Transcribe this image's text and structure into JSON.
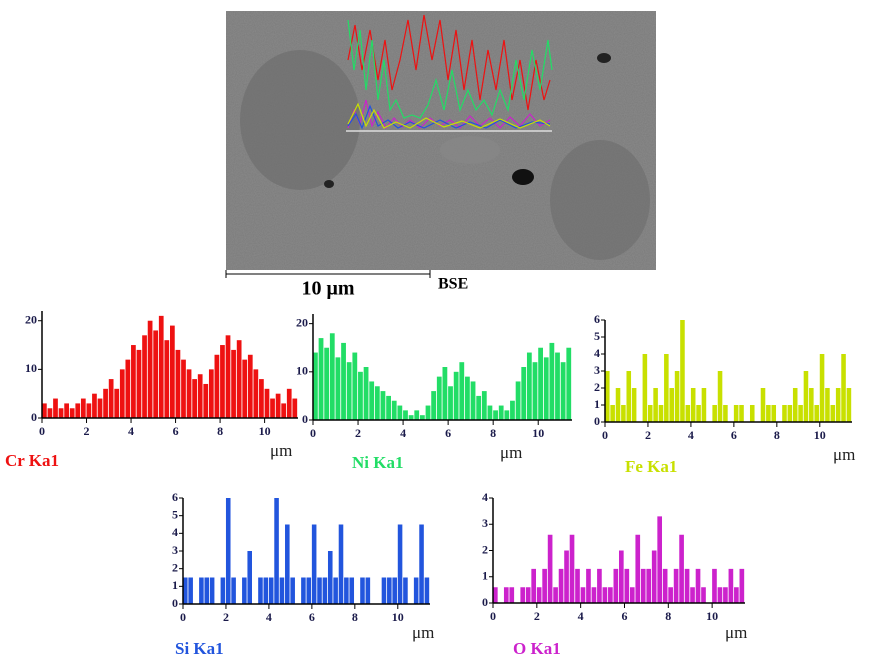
{
  "image": {
    "scale_bar": "10 μm",
    "label": "BSE"
  },
  "chart_data": [
    {
      "type": "bar",
      "title": "Cr Ka1",
      "x_label": "μm",
      "color": "#ee1111",
      "x": [
        0,
        0.25,
        0.5,
        0.75,
        1,
        1.25,
        1.5,
        1.75,
        2,
        2.25,
        2.5,
        2.75,
        3,
        3.25,
        3.5,
        3.75,
        4,
        4.25,
        4.5,
        4.75,
        5,
        5.25,
        5.5,
        5.75,
        6,
        6.25,
        6.5,
        6.75,
        7,
        7.25,
        7.5,
        7.75,
        8,
        8.25,
        8.5,
        8.75,
        9,
        9.25,
        9.5,
        9.75,
        10,
        10.25,
        10.5,
        10.75,
        11,
        11.25
      ],
      "values": [
        3,
        2,
        4,
        2,
        3,
        2,
        3,
        4,
        3,
        5,
        4,
        6,
        8,
        6,
        10,
        12,
        15,
        14,
        17,
        20,
        18,
        21,
        16,
        19,
        14,
        12,
        10,
        8,
        9,
        7,
        10,
        13,
        15,
        17,
        14,
        16,
        12,
        13,
        10,
        8,
        6,
        4,
        5,
        3,
        6,
        4
      ],
      "xlim": [
        0,
        11.5
      ],
      "xticks": [
        0,
        2,
        4,
        6,
        8,
        10
      ],
      "ylim": [
        0,
        22
      ],
      "yticks": [
        0,
        10,
        20
      ]
    },
    {
      "type": "bar",
      "title": "Ni Ka1",
      "x_label": "μm",
      "color": "#22dd66",
      "x": [
        0,
        0.25,
        0.5,
        0.75,
        1,
        1.25,
        1.5,
        1.75,
        2,
        2.25,
        2.5,
        2.75,
        3,
        3.25,
        3.5,
        3.75,
        4,
        4.25,
        4.5,
        4.75,
        5,
        5.25,
        5.5,
        5.75,
        6,
        6.25,
        6.5,
        6.75,
        7,
        7.25,
        7.5,
        7.75,
        8,
        8.25,
        8.5,
        8.75,
        9,
        9.25,
        9.5,
        9.75,
        10,
        10.25,
        10.5,
        10.75,
        11,
        11.25
      ],
      "values": [
        14,
        17,
        15,
        18,
        13,
        16,
        12,
        14,
        10,
        11,
        8,
        7,
        6,
        5,
        4,
        3,
        2,
        1,
        2,
        1,
        3,
        6,
        9,
        11,
        7,
        10,
        12,
        9,
        8,
        5,
        6,
        3,
        2,
        3,
        2,
        4,
        8,
        11,
        14,
        12,
        15,
        13,
        16,
        14,
        12,
        15
      ],
      "xlim": [
        0,
        11.5
      ],
      "xticks": [
        0,
        2,
        4,
        6,
        8,
        10
      ],
      "ylim": [
        0,
        22
      ],
      "yticks": [
        0,
        10,
        20
      ]
    },
    {
      "type": "bar",
      "title": "Fe Ka1",
      "x_label": "μm",
      "color": "#c8e000",
      "x": [
        0,
        0.25,
        0.5,
        0.75,
        1,
        1.25,
        1.5,
        1.75,
        2,
        2.25,
        2.5,
        2.75,
        3,
        3.25,
        3.5,
        3.75,
        4,
        4.25,
        4.5,
        4.75,
        5,
        5.25,
        5.5,
        5.75,
        6,
        6.25,
        6.5,
        6.75,
        7,
        7.25,
        7.5,
        7.75,
        8,
        8.25,
        8.5,
        8.75,
        9,
        9.25,
        9.5,
        9.75,
        10,
        10.25,
        10.5,
        10.75,
        11,
        11.25
      ],
      "values": [
        3,
        1,
        2,
        1,
        3,
        2,
        0,
        4,
        1,
        2,
        1,
        4,
        2,
        3,
        6,
        1,
        2,
        1,
        2,
        0,
        1,
        3,
        1,
        0,
        1,
        1,
        0,
        1,
        0,
        2,
        1,
        1,
        0,
        1,
        1,
        2,
        1,
        3,
        2,
        1,
        4,
        2,
        1,
        2,
        4,
        2
      ],
      "xlim": [
        0,
        11.5
      ],
      "xticks": [
        0,
        2,
        4,
        6,
        8,
        10
      ],
      "ylim": [
        0,
        6
      ],
      "yticks": [
        0,
        1,
        2,
        3,
        4,
        5,
        6
      ]
    },
    {
      "type": "bar",
      "title": "Si Ka1",
      "x_label": "μm",
      "color": "#2255dd",
      "x": [
        0,
        0.25,
        0.5,
        0.75,
        1,
        1.25,
        1.5,
        1.75,
        2,
        2.25,
        2.5,
        2.75,
        3,
        3.25,
        3.5,
        3.75,
        4,
        4.25,
        4.5,
        4.75,
        5,
        5.25,
        5.5,
        5.75,
        6,
        6.25,
        6.5,
        6.75,
        7,
        7.25,
        7.5,
        7.75,
        8,
        8.25,
        8.5,
        8.75,
        9,
        9.25,
        9.5,
        9.75,
        10,
        10.25,
        10.5,
        10.75,
        11,
        11.25
      ],
      "values": [
        1.5,
        1.5,
        0,
        1.5,
        1.5,
        1.5,
        0,
        1.5,
        6,
        1.5,
        0,
        1.5,
        3,
        0,
        1.5,
        1.5,
        1.5,
        6,
        1.5,
        4.5,
        1.5,
        0,
        1.5,
        1.5,
        4.5,
        1.5,
        1.5,
        3,
        1.5,
        4.5,
        1.5,
        1.5,
        0,
        1.5,
        1.5,
        0,
        0,
        1.5,
        1.5,
        1.5,
        4.5,
        1.5,
        0,
        1.5,
        4.5,
        1.5
      ],
      "xlim": [
        0,
        11.5
      ],
      "xticks": [
        0,
        2,
        4,
        6,
        8,
        10
      ],
      "ylim": [
        0,
        6
      ],
      "yticks": [
        0,
        1,
        2,
        3,
        4,
        5,
        6
      ]
    },
    {
      "type": "bar",
      "title": "O Ka1",
      "x_label": "μm",
      "color": "#cc22cc",
      "x": [
        0,
        0.25,
        0.5,
        0.75,
        1,
        1.25,
        1.5,
        1.75,
        2,
        2.25,
        2.5,
        2.75,
        3,
        3.25,
        3.5,
        3.75,
        4,
        4.25,
        4.5,
        4.75,
        5,
        5.25,
        5.5,
        5.75,
        6,
        6.25,
        6.5,
        6.75,
        7,
        7.25,
        7.5,
        7.75,
        8,
        8.25,
        8.5,
        8.75,
        9,
        9.25,
        9.5,
        9.75,
        10,
        10.25,
        10.5,
        10.75,
        11,
        11.25
      ],
      "values": [
        0.6,
        0,
        0.6,
        0.6,
        0,
        0.6,
        0.6,
        1.3,
        0.6,
        1.3,
        2.6,
        0.6,
        1.3,
        2,
        2.6,
        1.3,
        0.6,
        1.3,
        0.6,
        1.3,
        0.6,
        0.6,
        1.3,
        2,
        1.3,
        0.6,
        2.6,
        1.3,
        1.3,
        2,
        3.3,
        1.3,
        0.6,
        1.3,
        2.6,
        1.3,
        0.6,
        1.3,
        0.6,
        0,
        1.3,
        0.6,
        0.6,
        1.3,
        0.6,
        1.3
      ],
      "xlim": [
        0,
        11.5
      ],
      "xticks": [
        0,
        2,
        4,
        6,
        8,
        10
      ],
      "ylim": [
        0,
        4
      ],
      "yticks": [
        0,
        1,
        2,
        3,
        4
      ]
    }
  ]
}
